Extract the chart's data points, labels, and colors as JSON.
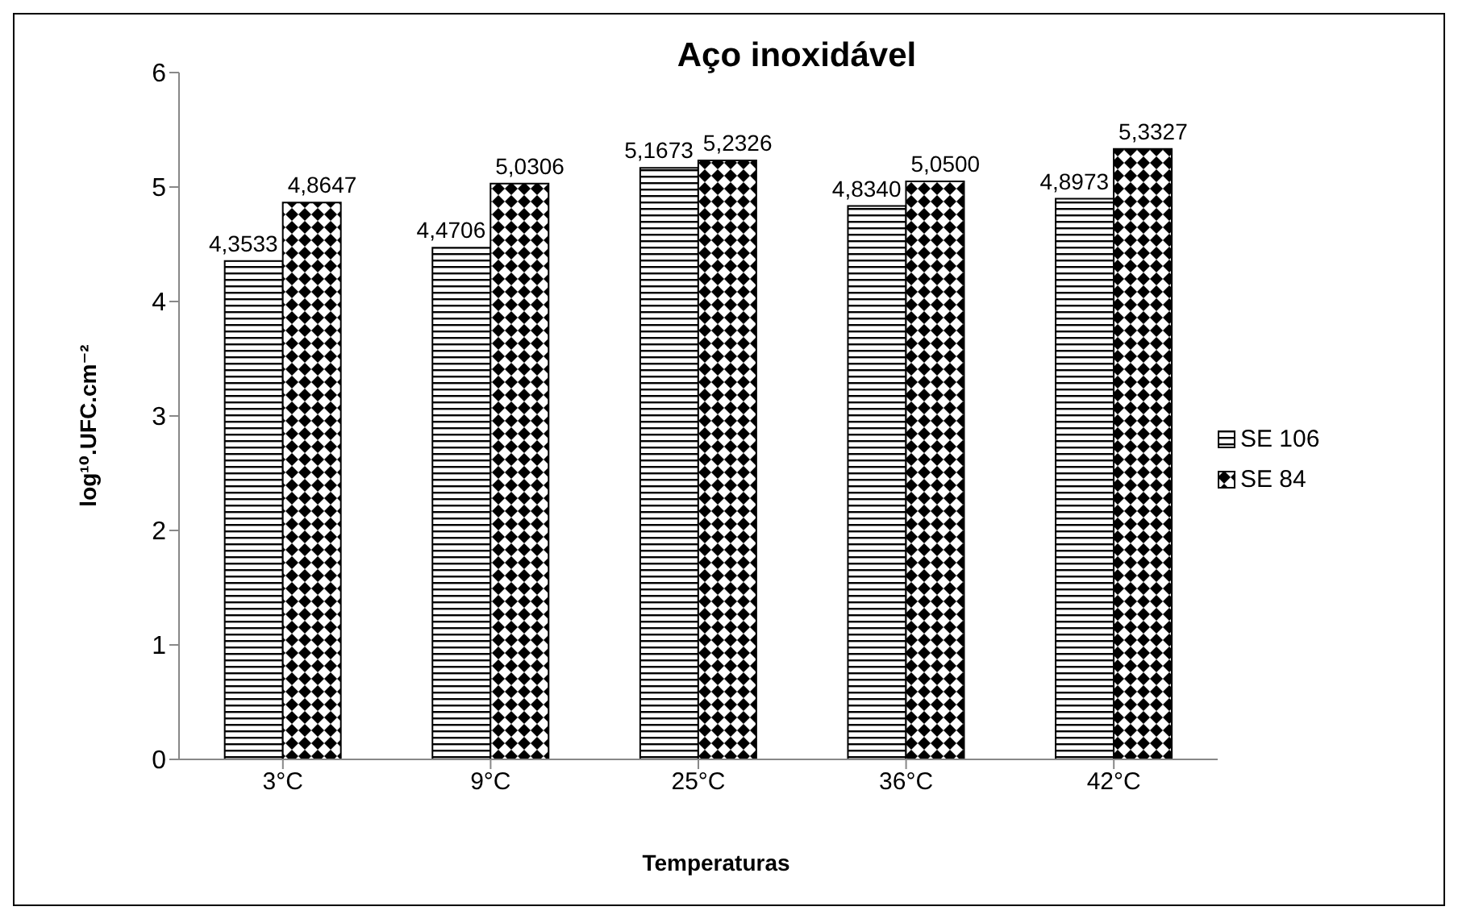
{
  "chart_data": {
    "type": "bar",
    "title": "Aço inoxidável",
    "xlabel": "Temperaturas",
    "ylabel": "log¹⁰.UFC.cm⁻²",
    "categories": [
      "3°C",
      "9°C",
      "25°C",
      "36°C",
      "42°C"
    ],
    "series": [
      {
        "name": "SE 106",
        "color": "#000000",
        "values": [
          4.3533,
          4.4706,
          5.1673,
          4.834,
          4.8973
        ],
        "value_labels": [
          "4,3533",
          "4,4706",
          "5,1673",
          "4,8340",
          "4,8973"
        ]
      },
      {
        "name": "SE 84",
        "color": "#000000",
        "values": [
          4.8647,
          5.0306,
          5.2326,
          5.05,
          5.3327
        ],
        "value_labels": [
          "4,8647",
          "5,0306",
          "5,2326",
          "5,0500",
          "5,3327"
        ]
      }
    ],
    "ylim": [
      0,
      6
    ],
    "yticks": [
      0,
      1,
      2,
      3,
      4,
      5,
      6
    ],
    "grid": false,
    "legend": "right"
  }
}
